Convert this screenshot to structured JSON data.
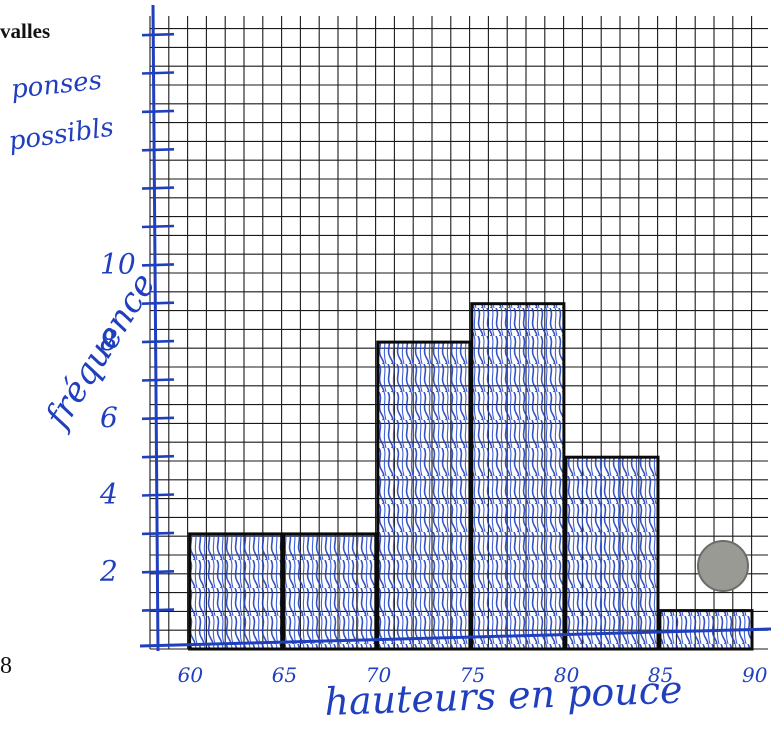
{
  "page": {
    "top_left_text": "valles",
    "bottom_left_text": "8"
  },
  "handwriting": {
    "note_line1": "ponses",
    "note_line2": "possibls",
    "y_axis_label": "fréquence",
    "x_axis_label": "hauteurs en pouce"
  },
  "colors": {
    "ink": "#1f3fbf",
    "grid": "#111111",
    "bar_outline": "#0a0a0a",
    "marker": "#9a9a94"
  },
  "chart_data": {
    "type": "bar",
    "histogram": true,
    "categories": [
      "60-65",
      "65-70",
      "70-75",
      "75-80",
      "80-85",
      "85-90"
    ],
    "bin_edges": [
      60,
      65,
      70,
      75,
      80,
      85,
      90
    ],
    "values": [
      3,
      3,
      8,
      9,
      5,
      1
    ],
    "x_ticks": [
      "60",
      "65",
      "70",
      "75",
      "80",
      "85",
      "90"
    ],
    "y_ticks": [
      "2",
      "4",
      "6",
      "8",
      "10"
    ],
    "xlabel": "hauteurs en pouce",
    "ylabel": "fréquence",
    "xlim": [
      58,
      90
    ],
    "ylim": [
      0,
      16.5
    ],
    "grid": true
  }
}
